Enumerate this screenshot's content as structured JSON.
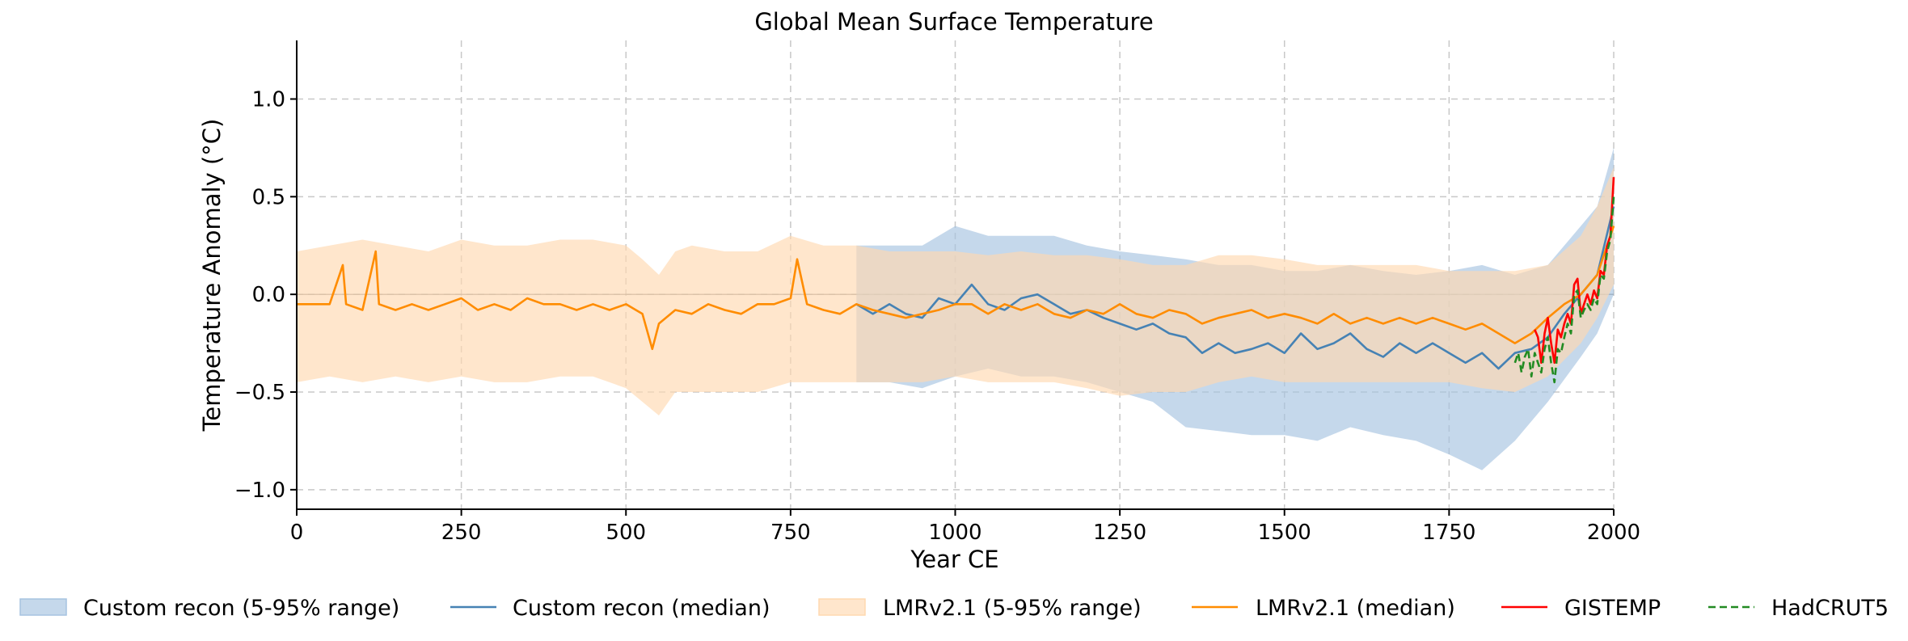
{
  "chart_data": {
    "type": "line",
    "title": "Global Mean Surface Temperature",
    "xlabel": "Year CE",
    "ylabel": "Temperature Anomaly (°C)",
    "xlim": [
      0,
      2000
    ],
    "ylim": [
      -1.1,
      1.3
    ],
    "xticks": [
      0,
      250,
      500,
      750,
      1000,
      1250,
      1500,
      1750,
      2000
    ],
    "yticks": [
      -1.0,
      -0.5,
      0.0,
      0.5,
      1.0
    ],
    "ytick_labels": [
      "−1.0",
      "−0.5",
      "0.0",
      "0.5",
      "1.0"
    ],
    "grid": true,
    "legend_position": "bottom",
    "series": [
      {
        "name": "Custom recon (5-95% range)",
        "kind": "band",
        "color": "#a6c3e0",
        "x": [
          850,
          900,
          950,
          1000,
          1050,
          1100,
          1150,
          1200,
          1250,
          1300,
          1350,
          1400,
          1450,
          1500,
          1550,
          1600,
          1650,
          1700,
          1750,
          1800,
          1850,
          1900,
          1950,
          1975,
          2000
        ],
        "lower": [
          -0.45,
          -0.45,
          -0.48,
          -0.42,
          -0.38,
          -0.42,
          -0.42,
          -0.45,
          -0.5,
          -0.55,
          -0.68,
          -0.7,
          -0.72,
          -0.72,
          -0.75,
          -0.68,
          -0.72,
          -0.75,
          -0.82,
          -0.9,
          -0.75,
          -0.55,
          -0.32,
          -0.2,
          0.0
        ],
        "upper": [
          0.25,
          0.25,
          0.25,
          0.35,
          0.3,
          0.3,
          0.3,
          0.25,
          0.22,
          0.2,
          0.18,
          0.15,
          0.15,
          0.12,
          0.12,
          0.15,
          0.12,
          0.1,
          0.12,
          0.15,
          0.1,
          0.15,
          0.35,
          0.45,
          0.75
        ]
      },
      {
        "name": "Custom recon (median)",
        "kind": "line",
        "color": "#4682b4",
        "x": [
          850,
          875,
          900,
          925,
          950,
          975,
          1000,
          1025,
          1050,
          1075,
          1100,
          1125,
          1150,
          1175,
          1200,
          1225,
          1250,
          1275,
          1300,
          1325,
          1350,
          1375,
          1400,
          1425,
          1450,
          1475,
          1500,
          1525,
          1550,
          1575,
          1600,
          1625,
          1650,
          1675,
          1700,
          1725,
          1750,
          1775,
          1800,
          1825,
          1850,
          1875,
          1900,
          1925,
          1950,
          1975,
          2000
        ],
        "y": [
          -0.05,
          -0.1,
          -0.05,
          -0.1,
          -0.12,
          -0.02,
          -0.05,
          0.05,
          -0.05,
          -0.08,
          -0.02,
          0.0,
          -0.05,
          -0.1,
          -0.08,
          -0.12,
          -0.15,
          -0.18,
          -0.15,
          -0.2,
          -0.22,
          -0.3,
          -0.25,
          -0.3,
          -0.28,
          -0.25,
          -0.3,
          -0.2,
          -0.28,
          -0.25,
          -0.2,
          -0.28,
          -0.32,
          -0.25,
          -0.3,
          -0.25,
          -0.3,
          -0.35,
          -0.3,
          -0.38,
          -0.3,
          -0.28,
          -0.22,
          -0.1,
          0.0,
          0.1,
          0.45
        ]
      },
      {
        "name": "LMRv2.1 (5-95% range)",
        "kind": "band",
        "color": "#ffd9b0",
        "x": [
          0,
          50,
          100,
          150,
          200,
          250,
          300,
          350,
          400,
          450,
          500,
          525,
          550,
          575,
          600,
          650,
          700,
          750,
          800,
          850,
          900,
          950,
          1000,
          1050,
          1100,
          1150,
          1200,
          1250,
          1300,
          1350,
          1400,
          1450,
          1500,
          1550,
          1600,
          1650,
          1700,
          1750,
          1800,
          1850,
          1900,
          1950,
          1975,
          2000
        ],
        "lower": [
          -0.45,
          -0.42,
          -0.45,
          -0.42,
          -0.45,
          -0.42,
          -0.45,
          -0.45,
          -0.42,
          -0.42,
          -0.48,
          -0.55,
          -0.62,
          -0.5,
          -0.5,
          -0.5,
          -0.5,
          -0.45,
          -0.45,
          -0.45,
          -0.45,
          -0.45,
          -0.42,
          -0.45,
          -0.45,
          -0.45,
          -0.48,
          -0.52,
          -0.5,
          -0.5,
          -0.45,
          -0.42,
          -0.45,
          -0.45,
          -0.45,
          -0.45,
          -0.45,
          -0.45,
          -0.48,
          -0.5,
          -0.42,
          -0.25,
          -0.12,
          0.05
        ],
        "upper": [
          0.22,
          0.25,
          0.28,
          0.25,
          0.22,
          0.28,
          0.25,
          0.25,
          0.28,
          0.28,
          0.25,
          0.18,
          0.1,
          0.22,
          0.25,
          0.22,
          0.22,
          0.3,
          0.25,
          0.25,
          0.22,
          0.22,
          0.22,
          0.2,
          0.22,
          0.2,
          0.2,
          0.18,
          0.15,
          0.15,
          0.2,
          0.2,
          0.18,
          0.15,
          0.15,
          0.15,
          0.15,
          0.12,
          0.12,
          0.12,
          0.15,
          0.3,
          0.45,
          0.65
        ]
      },
      {
        "name": "LMRv2.1 (median)",
        "kind": "line",
        "color": "#ff8c00",
        "x": [
          0,
          25,
          50,
          70,
          75,
          100,
          120,
          125,
          150,
          175,
          200,
          225,
          250,
          275,
          300,
          325,
          350,
          375,
          400,
          425,
          450,
          475,
          500,
          525,
          540,
          550,
          575,
          600,
          625,
          650,
          675,
          700,
          725,
          750,
          760,
          775,
          800,
          825,
          850,
          875,
          900,
          925,
          950,
          975,
          1000,
          1025,
          1050,
          1075,
          1100,
          1125,
          1150,
          1175,
          1200,
          1225,
          1250,
          1275,
          1300,
          1325,
          1350,
          1375,
          1400,
          1425,
          1450,
          1475,
          1500,
          1525,
          1550,
          1575,
          1600,
          1625,
          1650,
          1675,
          1700,
          1725,
          1750,
          1775,
          1800,
          1825,
          1850,
          1875,
          1900,
          1925,
          1950,
          1975,
          2000
        ],
        "y": [
          -0.05,
          -0.05,
          -0.05,
          0.15,
          -0.05,
          -0.08,
          0.22,
          -0.05,
          -0.08,
          -0.05,
          -0.08,
          -0.05,
          -0.02,
          -0.08,
          -0.05,
          -0.08,
          -0.02,
          -0.05,
          -0.05,
          -0.08,
          -0.05,
          -0.08,
          -0.05,
          -0.1,
          -0.28,
          -0.15,
          -0.08,
          -0.1,
          -0.05,
          -0.08,
          -0.1,
          -0.05,
          -0.05,
          -0.02,
          0.18,
          -0.05,
          -0.08,
          -0.1,
          -0.05,
          -0.08,
          -0.1,
          -0.12,
          -0.1,
          -0.08,
          -0.05,
          -0.05,
          -0.1,
          -0.05,
          -0.08,
          -0.05,
          -0.1,
          -0.12,
          -0.08,
          -0.1,
          -0.05,
          -0.1,
          -0.12,
          -0.08,
          -0.1,
          -0.15,
          -0.12,
          -0.1,
          -0.08,
          -0.12,
          -0.1,
          -0.12,
          -0.15,
          -0.1,
          -0.15,
          -0.12,
          -0.15,
          -0.12,
          -0.15,
          -0.12,
          -0.15,
          -0.18,
          -0.15,
          -0.2,
          -0.25,
          -0.2,
          -0.12,
          -0.05,
          0.0,
          0.1,
          0.35
        ]
      },
      {
        "name": "GISTEMP",
        "kind": "line",
        "color": "#ff0000",
        "x": [
          1880,
          1885,
          1890,
          1895,
          1900,
          1905,
          1910,
          1915,
          1920,
          1925,
          1930,
          1935,
          1940,
          1945,
          1950,
          1955,
          1960,
          1965,
          1970,
          1975,
          1980,
          1985,
          1990,
          1995,
          2000
        ],
        "y": [
          -0.18,
          -0.22,
          -0.35,
          -0.2,
          -0.12,
          -0.25,
          -0.35,
          -0.18,
          -0.22,
          -0.15,
          -0.1,
          -0.15,
          0.05,
          0.08,
          -0.1,
          -0.05,
          0.0,
          -0.05,
          0.02,
          -0.02,
          0.12,
          0.1,
          0.25,
          0.3,
          0.6
        ]
      },
      {
        "name": "HadCRUT5",
        "kind": "line",
        "dashed": true,
        "color": "#228b22",
        "x": [
          1850,
          1855,
          1860,
          1865,
          1870,
          1875,
          1880,
          1885,
          1890,
          1895,
          1900,
          1905,
          1910,
          1915,
          1920,
          1925,
          1930,
          1935,
          1940,
          1945,
          1950,
          1955,
          1960,
          1965,
          1970,
          1975,
          1980,
          1985,
          1990,
          1995,
          2000
        ],
        "y": [
          -0.35,
          -0.3,
          -0.4,
          -0.32,
          -0.28,
          -0.42,
          -0.3,
          -0.35,
          -0.4,
          -0.28,
          -0.22,
          -0.35,
          -0.45,
          -0.28,
          -0.3,
          -0.22,
          -0.15,
          -0.2,
          0.0,
          0.02,
          -0.12,
          -0.08,
          -0.05,
          -0.08,
          -0.02,
          -0.05,
          0.1,
          0.08,
          0.22,
          0.28,
          0.5
        ]
      }
    ]
  }
}
